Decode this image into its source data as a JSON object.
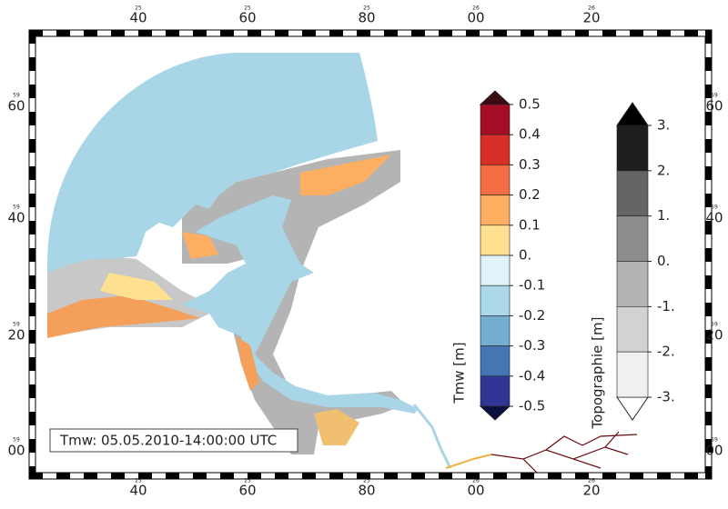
{
  "frame": {
    "x_labels": [
      {
        "main": "40",
        "sub": "25"
      },
      {
        "main": "60",
        "sub": "25"
      },
      {
        "main": "80",
        "sub": "25"
      },
      {
        "main": "00",
        "sub": "26"
      },
      {
        "main": "20",
        "sub": "26"
      }
    ],
    "y_labels": [
      {
        "main": "60",
        "sub": "59"
      },
      {
        "main": "40",
        "sub": "59"
      },
      {
        "main": "20",
        "sub": "59"
      },
      {
        "main": "00",
        "sub": "59"
      }
    ]
  },
  "annotation": "Tmw: 05.05.2010-14:00:00 UTC",
  "colorbars": [
    {
      "title": "Tmw [m]",
      "ticks": [
        0.5,
        0.4,
        0.3,
        0.2,
        0.1,
        {
          "value": 0,
          "label": "0."
        },
        -0.1,
        -0.2,
        -0.3,
        -0.4,
        -0.5
      ],
      "colors": [
        "#a50f26",
        "#d73027",
        "#f46d43",
        "#fdae61",
        "#fee090",
        "#e0f3f8",
        "#abd9e9",
        "#74add1",
        "#4575b4",
        "#313695"
      ],
      "over_color": "#3d0a10",
      "under_color": "#0a1040"
    },
    {
      "title": "Topographie [m]",
      "ticks": [
        {
          "value": 3,
          "label": "3."
        },
        {
          "value": 2,
          "label": "2."
        },
        {
          "value": 1,
          "label": "1."
        },
        {
          "value": 0,
          "label": "0."
        },
        {
          "value": -1,
          "label": "-1."
        },
        {
          "value": -2,
          "label": "-2."
        },
        {
          "value": -3,
          "label": "-3."
        }
      ],
      "colors": [
        "#1e1e1e",
        "#646464",
        "#8c8c8c",
        "#b4b4b4",
        "#d2d2d2",
        "#f0f0f0"
      ],
      "over_color": "#000000",
      "under_color": "#ffffff"
    }
  ]
}
